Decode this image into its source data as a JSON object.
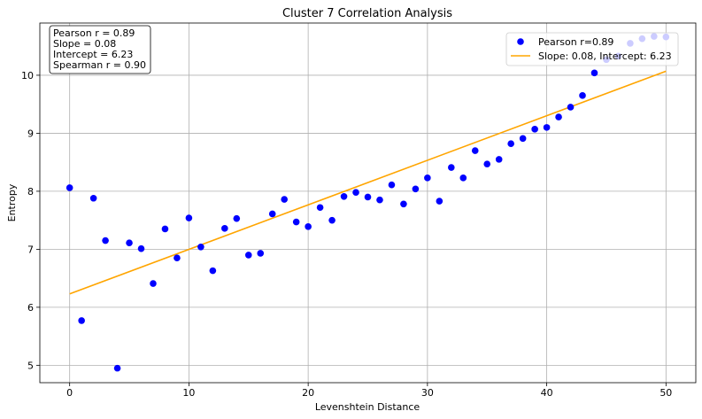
{
  "chart_data": {
    "type": "scatter",
    "title": "Cluster 7 Correlation Analysis",
    "xlabel": "Levenshtein Distance",
    "ylabel": "Entropy",
    "xlim": [
      -2.5,
      52.5
    ],
    "ylim": [
      4.7,
      10.9
    ],
    "x_ticks": [
      0,
      10,
      20,
      30,
      40,
      50
    ],
    "y_ticks": [
      5,
      6,
      7,
      8,
      9,
      10
    ],
    "grid": true,
    "legend_position": "top-right",
    "colors": {
      "points": "#0000ff",
      "fit_line": "#ffa500"
    },
    "series": [
      {
        "name": "Pearson r=0.89",
        "kind": "scatter",
        "x": [
          0,
          1,
          2,
          3,
          4,
          5,
          6,
          7,
          8,
          9,
          10,
          11,
          12,
          13,
          14,
          15,
          16,
          17,
          18,
          19,
          20,
          21,
          22,
          23,
          24,
          25,
          26,
          27,
          28,
          29,
          30,
          31,
          32,
          33,
          34,
          35,
          36,
          37,
          38,
          39,
          40,
          41,
          42,
          43,
          44,
          45,
          46,
          47,
          48,
          49,
          50
        ],
        "y": [
          8.06,
          5.77,
          7.88,
          7.15,
          4.95,
          7.11,
          7.01,
          6.41,
          7.35,
          6.85,
          7.54,
          7.04,
          6.63,
          7.36,
          7.53,
          6.9,
          6.93,
          7.61,
          7.86,
          7.47,
          7.39,
          7.72,
          7.5,
          7.91,
          7.98,
          7.9,
          7.85,
          8.11,
          7.78,
          8.04,
          8.23,
          7.83,
          8.41,
          8.23,
          8.7,
          8.47,
          8.55,
          8.82,
          8.91,
          9.07,
          9.1,
          9.28,
          9.45,
          9.65,
          10.04,
          10.27,
          10.33,
          10.55,
          10.63,
          10.67,
          10.66
        ]
      },
      {
        "name": "Slope: 0.08, Intercept: 6.23",
        "kind": "line",
        "x": [
          0,
          50
        ],
        "y": [
          6.23,
          10.07
        ]
      }
    ],
    "annotation_lines": [
      "Pearson r = 0.89",
      "Slope = 0.08",
      "Intercept = 6.23",
      "Spearman r = 0.90"
    ]
  }
}
